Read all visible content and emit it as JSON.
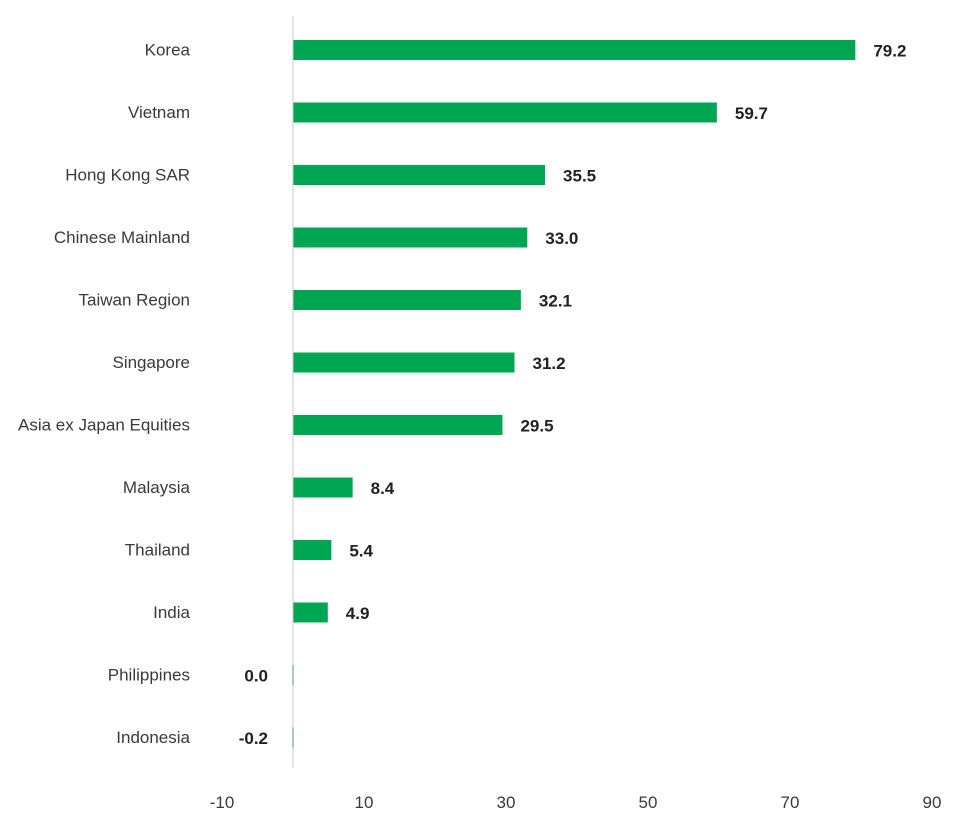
{
  "chart_data": {
    "type": "bar",
    "orientation": "horizontal",
    "categories": [
      "Korea",
      "Vietnam",
      "Hong Kong SAR",
      "Chinese Mainland",
      "Taiwan Region",
      "Singapore",
      "Asia ex Japan Equities",
      "Malaysia",
      "Thailand",
      "India",
      "Philippines",
      "Indonesia"
    ],
    "values": [
      79.2,
      59.7,
      35.5,
      33.0,
      32.1,
      31.2,
      29.5,
      8.4,
      5.4,
      4.9,
      0.0,
      -0.2
    ],
    "value_labels": [
      "79.2",
      "59.7",
      "35.5",
      "33.0",
      "32.1",
      "31.2",
      "29.5",
      "8.4",
      "5.4",
      "4.9",
      "0.0",
      "-0.2"
    ],
    "xlim": [
      -10,
      90
    ],
    "xticks": [
      -10,
      10,
      30,
      50,
      70,
      90
    ],
    "xtick_labels": [
      "-10",
      "10",
      "30",
      "50",
      "70",
      "90"
    ],
    "title": "",
    "xlabel": "",
    "ylabel": "",
    "grid": false,
    "bar_color": "#00a651",
    "axis_color": "#c8c8c8"
  }
}
